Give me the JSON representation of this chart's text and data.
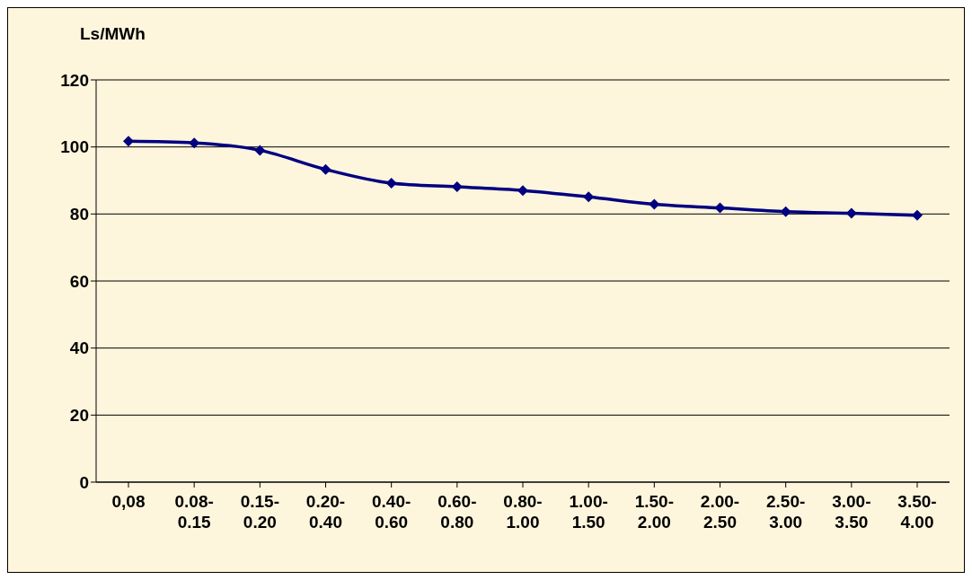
{
  "chart_data": {
    "type": "line",
    "ylabel": "Ls/MWh",
    "categories": [
      "0,08",
      "0.08-0.15",
      "0.15-0.20",
      "0.20-0.40",
      "0.40-0.60",
      "0.60-0.80",
      "0.80-1.00",
      "1.00-1.50",
      "1.50-2.00",
      "2.00-2.50",
      "2.50-3.00",
      "3.00-3.50",
      "3.50-4.00"
    ],
    "series": [
      {
        "color": "#000080",
        "values": [
          101.7,
          101.2,
          99,
          93.3,
          89.2,
          88.1,
          87,
          85.1,
          82.9,
          81.8,
          80.7,
          80.2,
          79.6
        ]
      }
    ],
    "ylim": [
      0,
      120
    ],
    "yticks": [
      0,
      20,
      40,
      60,
      80,
      100,
      120
    ],
    "grid": "y",
    "marker": "diamond",
    "line_style": "solid",
    "legend": false
  }
}
